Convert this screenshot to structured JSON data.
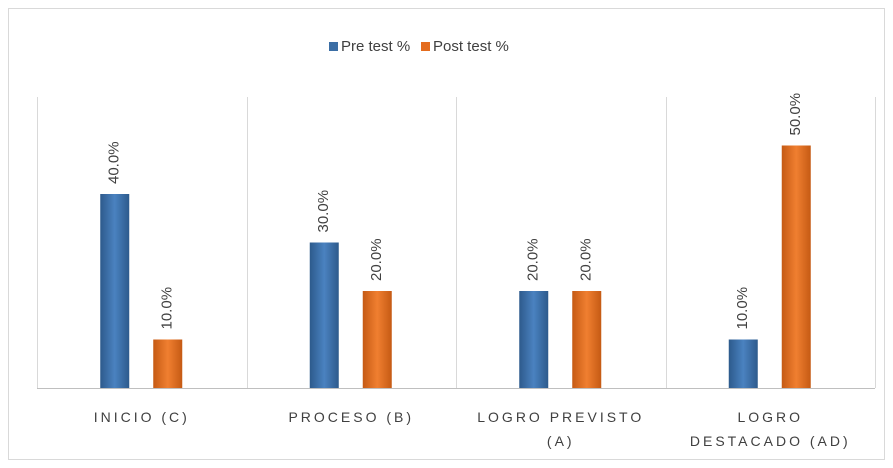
{
  "chart_data": {
    "type": "bar",
    "categories": [
      "INICIO (C)",
      "PROCESO (B)",
      "LOGRO PREVISTO (A)",
      "LOGRO DESTACADO (AD)"
    ],
    "series": [
      {
        "name": "Pre test %",
        "color": "#3b6ea5",
        "values": [
          40,
          30,
          20,
          10
        ],
        "value_labels": [
          "40.0%",
          "30.0%",
          "20.0%",
          "10.0%"
        ]
      },
      {
        "name": "Post test %",
        "color": "#e46c1e",
        "values": [
          10,
          20,
          20,
          50
        ],
        "value_labels": [
          "10.0%",
          "20.0%",
          "20.0%",
          "50.0%"
        ]
      }
    ],
    "ylim": [
      0,
      60
    ],
    "legend": "top",
    "grid": true
  }
}
